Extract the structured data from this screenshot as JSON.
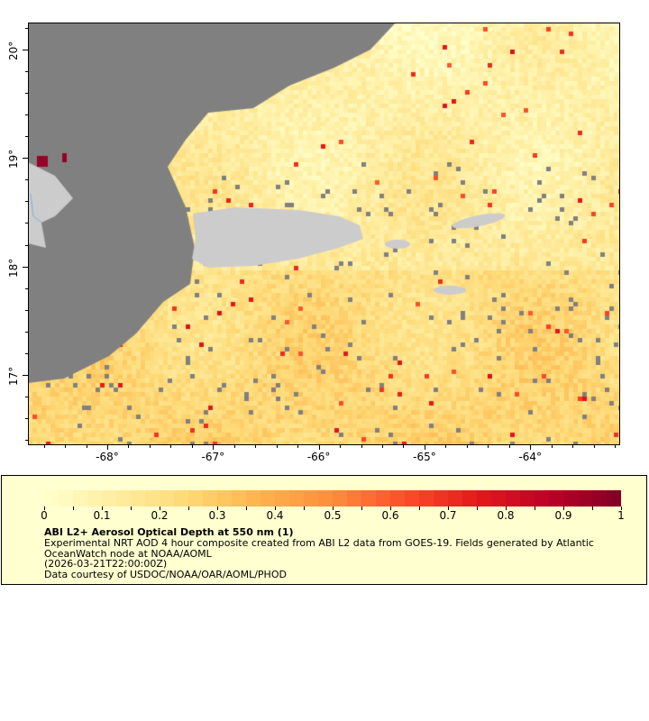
{
  "map": {
    "lat_ticks": [
      {
        "value": 20,
        "label": "20°"
      },
      {
        "value": 19,
        "label": "19°"
      },
      {
        "value": 18,
        "label": "18°"
      },
      {
        "value": 17,
        "label": "17°"
      }
    ],
    "lon_ticks": [
      {
        "value": -68,
        "label": "-68°"
      },
      {
        "value": -67,
        "label": "-67°"
      },
      {
        "value": -66,
        "label": "-66°"
      },
      {
        "value": -65,
        "label": "-65°"
      },
      {
        "value": -64,
        "label": "-64°"
      }
    ],
    "lon_range": [
      -68.75,
      -63.15
    ],
    "lat_range": [
      16.35,
      20.25
    ],
    "colors": {
      "no_data": "#808080",
      "land": "#cccccc",
      "river": "#7fb2e0"
    }
  },
  "legend": {
    "colorbar_labels": [
      "0",
      "0.1",
      "0.2",
      "0.3",
      "0.4",
      "0.5",
      "0.6",
      "0.7",
      "0.8",
      "0.9",
      "1"
    ],
    "range": [
      0,
      1
    ],
    "colormap": "YlOrRd",
    "title": "ABI L2+ Aerosol Optical Depth at 550 nm (1)",
    "desc1": "Experimental NRT AOD 4 hour composite created from ABI L2 data from GOES-19. Fields generated by Atlantic",
    "desc2": "OceanWatch node at NOAA/AOML",
    "time": "(2026-03-21T22:00:00Z)",
    "credit": "Data courtesy of USDOC/NOAA/OAR/AOML/PHOD"
  }
}
